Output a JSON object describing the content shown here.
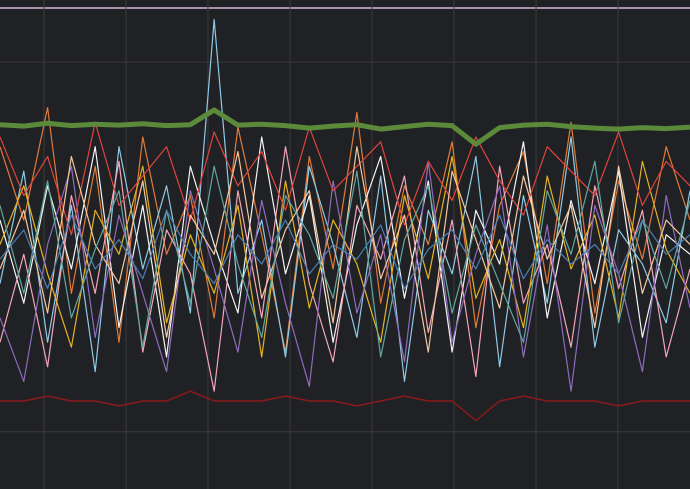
{
  "chart_data": {
    "type": "line",
    "background": "#202124",
    "grid": true,
    "grid_color": "#3a3b3e",
    "xlim": [
      0,
      29
    ],
    "ylim": [
      0,
      100
    ],
    "xticks": [
      1.85,
      5.3,
      8.74,
      12.19,
      15.63,
      19.08,
      22.53,
      25.97
    ],
    "yticks": [
      11.7,
      87.3
    ],
    "x": [
      0,
      1,
      2,
      3,
      4,
      5,
      6,
      7,
      8,
      9,
      10,
      11,
      12,
      13,
      14,
      15,
      16,
      17,
      18,
      19,
      20,
      21,
      22,
      23,
      24,
      25,
      26,
      27,
      28,
      29
    ],
    "series": [
      {
        "color": "#e07b39",
        "width": 1.2,
        "values": [
          70,
          55,
          78,
          40,
          66,
          30,
          72,
          48,
          60,
          35,
          74,
          52,
          28,
          68,
          45,
          77,
          38,
          62,
          50,
          71,
          33,
          58,
          69,
          42,
          75,
          36,
          63,
          47,
          70,
          55
        ]
      },
      {
        "color": "#8ecae6",
        "width": 1.2,
        "values": [
          42,
          65,
          30,
          58,
          24,
          70,
          45,
          62,
          36,
          96,
          40,
          55,
          27,
          66,
          50,
          31,
          64,
          22,
          57,
          44,
          68,
          25,
          60,
          38,
          72,
          29,
          53,
          46,
          34,
          61
        ]
      },
      {
        "color": "#f5f5f5",
        "width": 1.2,
        "values": [
          55,
          38,
          62,
          45,
          70,
          33,
          58,
          27,
          66,
          50,
          36,
          72,
          44,
          60,
          30,
          54,
          68,
          39,
          63,
          28,
          57,
          46,
          71,
          35,
          59,
          42,
          65,
          31,
          52,
          48
        ]
      },
      {
        "color": "#f4a6b8",
        "width": 1.2,
        "values": [
          30,
          48,
          25,
          60,
          40,
          67,
          28,
          53,
          44,
          20,
          61,
          35,
          70,
          42,
          26,
          58,
          47,
          64,
          32,
          55,
          23,
          66,
          38,
          50,
          29,
          62,
          41,
          57,
          27,
          45
        ]
      },
      {
        "color": "#e6b422",
        "width": 1.2,
        "values": [
          50,
          62,
          44,
          29,
          57,
          48,
          66,
          34,
          52,
          40,
          58,
          27,
          63,
          37,
          55,
          46,
          30,
          60,
          43,
          68,
          39,
          51,
          33,
          64,
          45,
          56,
          35,
          67,
          49,
          40
        ]
      },
      {
        "color": "#8e6bbf",
        "width": 1.2,
        "values": [
          35,
          22,
          50,
          66,
          31,
          56,
          40,
          24,
          61,
          45,
          28,
          59,
          38,
          21,
          63,
          36,
          52,
          26,
          67,
          30,
          48,
          62,
          27,
          54,
          20,
          58,
          44,
          24,
          60,
          37
        ]
      },
      {
        "color": "#e0443e",
        "width": 1.2,
        "values": [
          72,
          60,
          68,
          52,
          75,
          58,
          64,
          70,
          55,
          73,
          62,
          69,
          57,
          74,
          61,
          66,
          71,
          54,
          67,
          59,
          72,
          63,
          56,
          70,
          65,
          60,
          73,
          58,
          67,
          62
        ]
      },
      {
        "color": "#f6c89f",
        "width": 1.2,
        "values": [
          45,
          57,
          36,
          68,
          50,
          42,
          63,
          31,
          56,
          48,
          69,
          39,
          53,
          61,
          34,
          70,
          43,
          56,
          28,
          65,
          51,
          37,
          64,
          47,
          58,
          33,
          66,
          40,
          55,
          50
        ]
      },
      {
        "color": "#5fa8a0",
        "width": 1.2,
        "values": [
          58,
          40,
          63,
          35,
          49,
          61,
          29,
          57,
          38,
          66,
          46,
          31,
          60,
          52,
          39,
          65,
          27,
          51,
          62,
          36,
          54,
          42,
          30,
          61,
          48,
          67,
          34,
          55,
          41,
          59
        ]
      },
      {
        "color": "#4a7fb5",
        "width": 1.2,
        "values": [
          47,
          53,
          41,
          56,
          45,
          51,
          43,
          57,
          48,
          42,
          52,
          46,
          55,
          44,
          50,
          47,
          54,
          41,
          49,
          53,
          45,
          56,
          43,
          51,
          46,
          50,
          44,
          55,
          48,
          52
        ]
      },
      {
        "color": "#8b1a1a",
        "width": 1.5,
        "values": [
          18,
          18,
          19,
          18,
          18,
          17,
          18,
          18,
          20,
          18,
          18,
          18,
          19,
          18,
          18,
          17,
          18,
          19,
          18,
          18,
          14,
          18,
          19,
          18,
          18,
          18,
          17,
          18,
          18,
          18
        ]
      },
      {
        "color": "#5a8a3a",
        "width": 5,
        "values": [
          74.5,
          74.2,
          74.8,
          74.3,
          74.6,
          74.4,
          74.7,
          74.3,
          74.5,
          77.5,
          74.4,
          74.6,
          74.3,
          73.8,
          74.2,
          74.5,
          73.6,
          74.1,
          74.6,
          74.3,
          70.5,
          73.9,
          74.4,
          74.6,
          74.1,
          73.8,
          73.6,
          73.9,
          73.7,
          74.0
        ]
      }
    ]
  }
}
